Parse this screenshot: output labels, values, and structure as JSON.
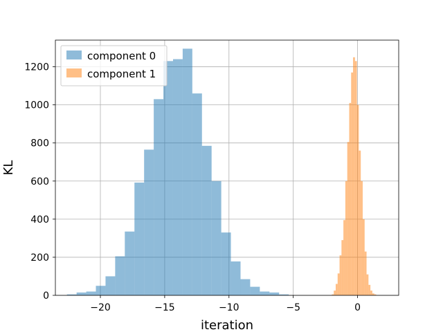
{
  "chart_data": {
    "type": "histogram",
    "xlabel": "iteration",
    "ylabel": "KL",
    "xlim": [
      -23.5,
      3.2
    ],
    "ylim": [
      0,
      1340
    ],
    "xticks": [
      -20,
      -15,
      -10,
      -5,
      0
    ],
    "xtick_labels": [
      "−20",
      "−15",
      "−10",
      "−5",
      "0"
    ],
    "yticks": [
      0,
      200,
      400,
      600,
      800,
      1000,
      1200
    ],
    "yticks_labels": [
      "0",
      "200",
      "400",
      "600",
      "800",
      "1000",
      "1200"
    ],
    "grid": true,
    "legend_position": "upper-left",
    "series": [
      {
        "name": "component 0",
        "color": "#1f77b4",
        "alpha": 0.5,
        "bins": [
          {
            "x0": -22.6,
            "x1": -21.85,
            "count": 5
          },
          {
            "x0": -21.85,
            "x1": -21.1,
            "count": 15
          },
          {
            "x0": -21.1,
            "x1": -20.35,
            "count": 20
          },
          {
            "x0": -20.35,
            "x1": -19.6,
            "count": 50
          },
          {
            "x0": -19.6,
            "x1": -18.85,
            "count": 100
          },
          {
            "x0": -18.85,
            "x1": -18.1,
            "count": 205
          },
          {
            "x0": -18.1,
            "x1": -17.35,
            "count": 335
          },
          {
            "x0": -17.35,
            "x1": -16.6,
            "count": 592
          },
          {
            "x0": -16.6,
            "x1": -15.85,
            "count": 765
          },
          {
            "x0": -15.85,
            "x1": -15.1,
            "count": 1030
          },
          {
            "x0": -15.1,
            "x1": -14.35,
            "count": 1230
          },
          {
            "x0": -14.35,
            "x1": -13.6,
            "count": 1240
          },
          {
            "x0": -13.6,
            "x1": -12.85,
            "count": 1295
          },
          {
            "x0": -12.85,
            "x1": -12.1,
            "count": 1060
          },
          {
            "x0": -12.1,
            "x1": -11.35,
            "count": 785
          },
          {
            "x0": -11.35,
            "x1": -10.6,
            "count": 600
          },
          {
            "x0": -10.6,
            "x1": -9.85,
            "count": 330
          },
          {
            "x0": -9.85,
            "x1": -9.1,
            "count": 178
          },
          {
            "x0": -9.1,
            "x1": -8.35,
            "count": 85
          },
          {
            "x0": -8.35,
            "x1": -7.6,
            "count": 45
          },
          {
            "x0": -7.6,
            "x1": -6.85,
            "count": 20
          },
          {
            "x0": -6.85,
            "x1": -6.1,
            "count": 15
          },
          {
            "x0": -6.1,
            "x1": -5.35,
            "count": 5
          }
        ]
      },
      {
        "name": "component 1",
        "color": "#ff7f0e",
        "alpha": 0.5,
        "bins": [
          {
            "x0": -2.0,
            "x1": -1.85,
            "count": 5
          },
          {
            "x0": -1.85,
            "x1": -1.7,
            "count": 25
          },
          {
            "x0": -1.7,
            "x1": -1.55,
            "count": 60
          },
          {
            "x0": -1.55,
            "x1": -1.4,
            "count": 115
          },
          {
            "x0": -1.4,
            "x1": -1.25,
            "count": 210
          },
          {
            "x0": -1.25,
            "x1": -1.1,
            "count": 290
          },
          {
            "x0": -1.1,
            "x1": -0.95,
            "count": 395
          },
          {
            "x0": -0.95,
            "x1": -0.8,
            "count": 600
          },
          {
            "x0": -0.8,
            "x1": -0.65,
            "count": 805
          },
          {
            "x0": -0.65,
            "x1": -0.5,
            "count": 1010
          },
          {
            "x0": -0.5,
            "x1": -0.35,
            "count": 1170
          },
          {
            "x0": -0.35,
            "x1": -0.2,
            "count": 1250
          },
          {
            "x0": -0.2,
            "x1": -0.05,
            "count": 1230
          },
          {
            "x0": -0.05,
            "x1": 0.1,
            "count": 1000
          },
          {
            "x0": 0.1,
            "x1": 0.25,
            "count": 760
          },
          {
            "x0": 0.25,
            "x1": 0.4,
            "count": 600
          },
          {
            "x0": 0.4,
            "x1": 0.55,
            "count": 400
          },
          {
            "x0": 0.55,
            "x1": 0.7,
            "count": 230
          },
          {
            "x0": 0.7,
            "x1": 0.85,
            "count": 110
          },
          {
            "x0": 0.85,
            "x1": 1.0,
            "count": 55
          },
          {
            "x0": 1.0,
            "x1": 1.15,
            "count": 25
          },
          {
            "x0": 1.15,
            "x1": 1.3,
            "count": 10
          },
          {
            "x0": 1.3,
            "x1": 1.45,
            "count": 5
          }
        ]
      }
    ]
  }
}
